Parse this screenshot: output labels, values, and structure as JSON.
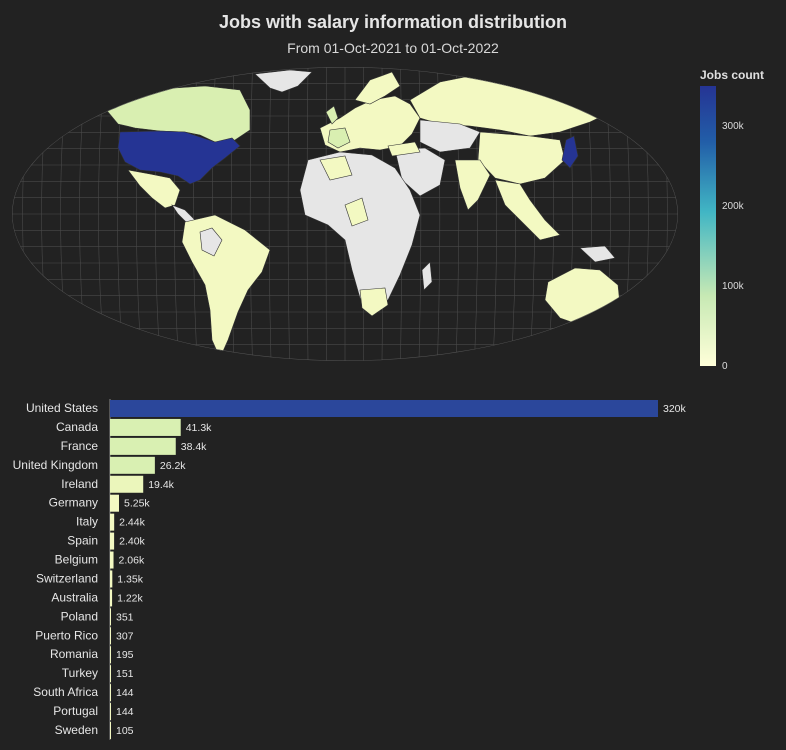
{
  "title": "Jobs with salary information distribution",
  "subtitle": "From 01-Oct-2021 to 01-Oct-2022",
  "colors": {
    "background": "#222222",
    "land_nodata": "#e6e6e6",
    "graticule": "#4a4a4a",
    "scale_low": "#f3f9c2",
    "scale_mid1": "#c7e9b4",
    "scale_mid2": "#41b6c4",
    "scale_high": "#253494"
  },
  "chart_data": [
    {
      "type": "choropleth",
      "colorbar_title": "Jobs count",
      "colorbar_ticks": [
        "0",
        "100k",
        "200k",
        "300k"
      ],
      "colorbar_tick_values": [
        0,
        100000,
        200000,
        300000
      ],
      "range": [
        0,
        350000
      ]
    },
    {
      "type": "bar",
      "orientation": "horizontal",
      "categories": [
        "United States",
        "Canada",
        "France",
        "United Kingdom",
        "Ireland",
        "Germany",
        "Italy",
        "Spain",
        "Belgium",
        "Switzerland",
        "Australia",
        "Poland",
        "Puerto Rico",
        "Romania",
        "Turkey",
        "South Africa",
        "Portugal",
        "Sweden"
      ],
      "values": [
        320000,
        41300,
        38400,
        26200,
        19400,
        5250,
        2440,
        2400,
        2060,
        1350,
        1220,
        351,
        307,
        195,
        151,
        144,
        144,
        105
      ],
      "data_labels": [
        "320k",
        "41.3k",
        "38.4k",
        "26.2k",
        "19.4k",
        "5.25k",
        "2.44k",
        "2.40k",
        "2.06k",
        "1.35k",
        "1.22k",
        "351",
        "307",
        "195",
        "151",
        "144",
        "144",
        "105"
      ]
    }
  ]
}
